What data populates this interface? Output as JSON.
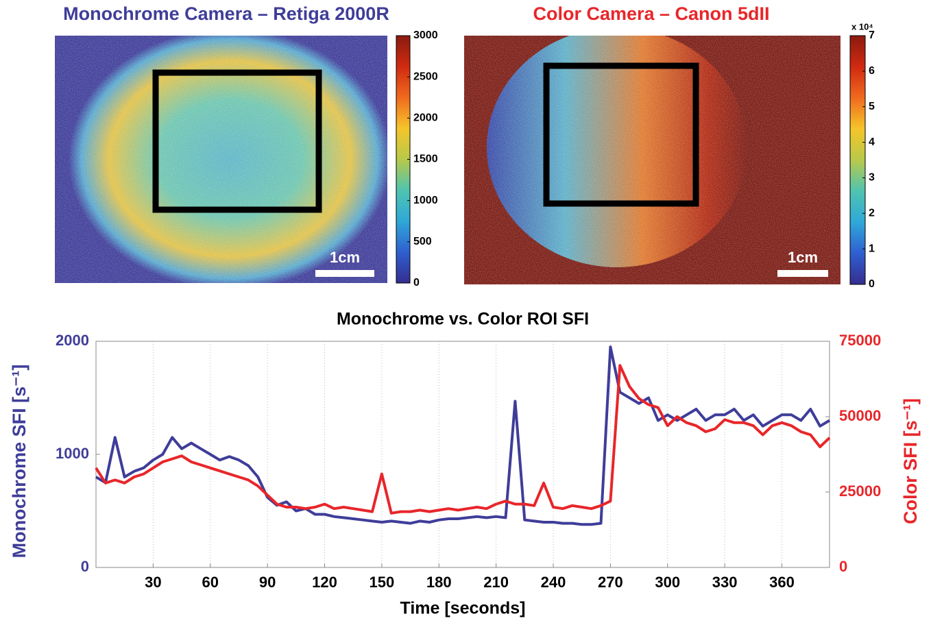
{
  "chart_data": [
    {
      "type": "heatmap",
      "title": "Monochrome Camera – Retiga 2000R",
      "title_color": "#3f3d99",
      "clim": [
        0,
        3000
      ],
      "cticks": [
        0,
        500,
        1000,
        1500,
        2000,
        2500,
        3000
      ],
      "colormap": [
        "#352d8f",
        "#2f5fd0",
        "#2fa8d8",
        "#4fc4b0",
        "#b8c94a",
        "#f5c52a",
        "#f06a1e",
        "#d02a10",
        "#8a1a10"
      ],
      "scale_bar_label": "1cm"
    },
    {
      "type": "heatmap",
      "title": "Color Camera – Canon 5dII",
      "title_color": "#e8262a",
      "clim": [
        0,
        7
      ],
      "cticks": [
        0,
        1,
        2,
        3,
        4,
        5,
        6,
        7
      ],
      "colorbar_multiplier": "x 10⁴",
      "colormap": [
        "#352d8f",
        "#2f5fd0",
        "#2fa8d8",
        "#4fc4b0",
        "#b8c94a",
        "#f5c52a",
        "#f06a1e",
        "#d02a10",
        "#8a1a10"
      ],
      "scale_bar_label": "1cm"
    },
    {
      "type": "line",
      "title": "Monochrome vs. Color ROI SFI",
      "x_label": "Time [seconds]",
      "y_label": "Monochrome SFI [s⁻¹]",
      "y2_label": "Color SFI [s⁻¹]",
      "xlim": [
        0,
        385
      ],
      "xticks": [
        30,
        60,
        90,
        120,
        150,
        180,
        210,
        240,
        270,
        300,
        330,
        360
      ],
      "ylim": [
        0,
        2000
      ],
      "yticks": [
        0,
        1000,
        2000
      ],
      "y2lim": [
        0,
        75000
      ],
      "y2ticks": [
        0,
        25000,
        50000,
        75000
      ],
      "grid": true,
      "x": [
        0,
        5,
        10,
        15,
        20,
        25,
        30,
        35,
        40,
        45,
        50,
        55,
        60,
        65,
        70,
        75,
        80,
        85,
        90,
        95,
        100,
        105,
        110,
        115,
        120,
        125,
        130,
        135,
        140,
        145,
        150,
        155,
        160,
        165,
        170,
        175,
        180,
        185,
        190,
        195,
        200,
        205,
        210,
        215,
        220,
        225,
        230,
        235,
        240,
        245,
        250,
        255,
        260,
        265,
        270,
        275,
        280,
        285,
        290,
        295,
        300,
        305,
        310,
        315,
        320,
        325,
        330,
        335,
        340,
        345,
        350,
        355,
        360,
        365,
        370,
        375,
        380,
        385
      ],
      "series": [
        {
          "name": "Monochrome",
          "color": "#3f3d99",
          "axis": "y",
          "values": [
            800,
            750,
            1150,
            800,
            850,
            880,
            950,
            1000,
            1150,
            1050,
            1100,
            1050,
            1000,
            950,
            980,
            950,
            900,
            800,
            620,
            550,
            580,
            500,
            520,
            470,
            470,
            450,
            440,
            430,
            420,
            410,
            400,
            410,
            400,
            390,
            410,
            400,
            420,
            430,
            430,
            440,
            450,
            440,
            450,
            440,
            1470,
            420,
            410,
            400,
            400,
            390,
            390,
            380,
            380,
            390,
            1950,
            1550,
            1500,
            1450,
            1500,
            1300,
            1350,
            1300,
            1350,
            1400,
            1300,
            1350,
            1350,
            1400,
            1300,
            1350,
            1250,
            1300,
            1350,
            1350,
            1300,
            1400,
            1250,
            1300
          ]
        },
        {
          "name": "Color",
          "color": "#e8262a",
          "axis": "y2",
          "values": [
            33000,
            28000,
            29000,
            28000,
            30000,
            31000,
            33000,
            35000,
            36000,
            37000,
            35000,
            34000,
            33000,
            32000,
            31000,
            30000,
            29000,
            27000,
            24000,
            21000,
            20000,
            20000,
            19500,
            20000,
            21000,
            19500,
            20000,
            19500,
            19000,
            18500,
            31000,
            18000,
            18500,
            18500,
            19000,
            18500,
            19000,
            19500,
            19000,
            19500,
            20000,
            19500,
            21000,
            22000,
            21000,
            21000,
            20500,
            28000,
            20000,
            19500,
            20500,
            20000,
            19500,
            20500,
            22000,
            67000,
            60000,
            56000,
            54000,
            53000,
            47000,
            50000,
            48000,
            47000,
            45000,
            46000,
            49000,
            48000,
            48000,
            47000,
            44000,
            47000,
            48000,
            47000,
            45000,
            44000,
            40000,
            43000
          ]
        }
      ]
    }
  ]
}
